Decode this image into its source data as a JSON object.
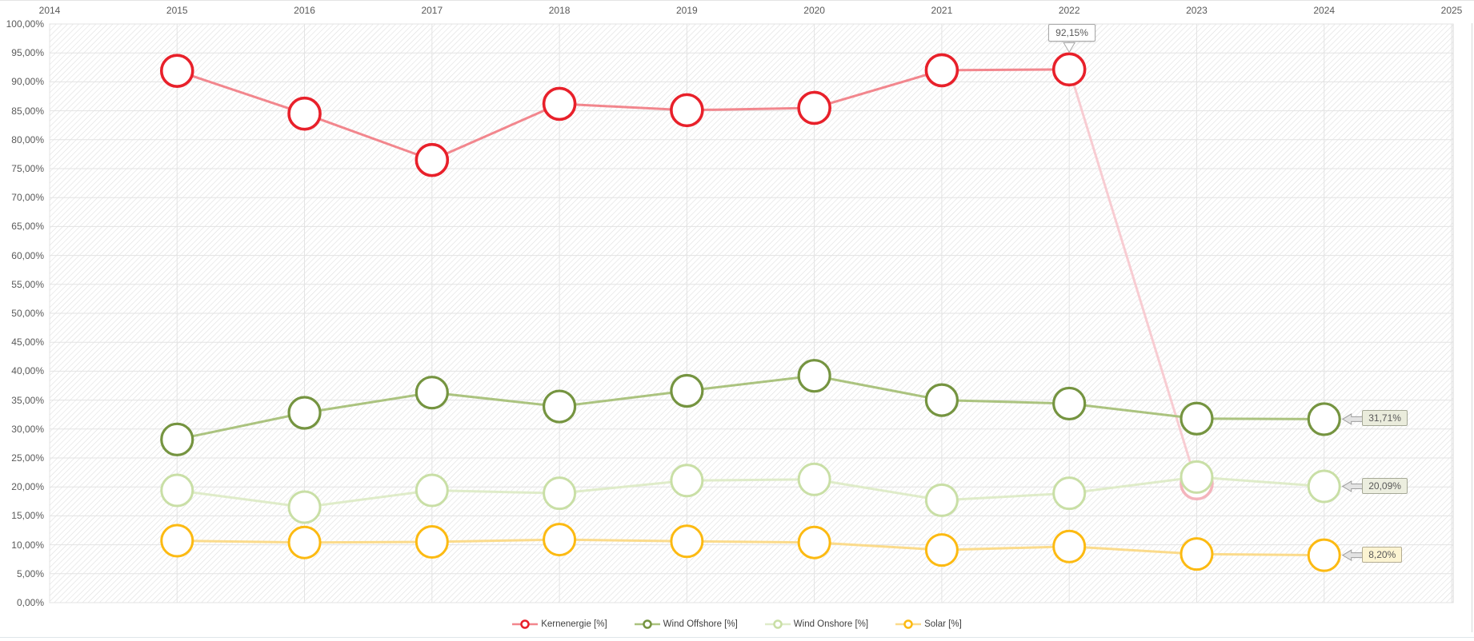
{
  "x_axis": {
    "labels": [
      "2014",
      "2015",
      "2016",
      "2017",
      "2018",
      "2019",
      "2020",
      "2021",
      "2022",
      "2023",
      "2024",
      "2025"
    ]
  },
  "y_axis": {
    "labels": [
      "100,00%",
      "95,00%",
      "90,00%",
      "85,00%",
      "80,00%",
      "75,00%",
      "70,00%",
      "65,00%",
      "60,00%",
      "55,00%",
      "50,00%",
      "45,00%",
      "40,00%",
      "35,00%",
      "30,00%",
      "25,00%",
      "20,00%",
      "15,00%",
      "10,00%",
      "5,00%",
      "0,00%"
    ]
  },
  "tooltip": {
    "text": "92,15%",
    "year": 2022,
    "value": 92.15
  },
  "annotations": [
    {
      "series": "Wind Offshore [%]",
      "text": "31,71%",
      "year": 2024,
      "value": 31.71,
      "bg": "#eaecdc",
      "border": "#a5a896"
    },
    {
      "series": "Wind Onshore [%]",
      "text": "20,09%",
      "year": 2024,
      "value": 20.09,
      "bg": "#eceedf",
      "border": "#a5a896"
    },
    {
      "series": "Solar [%]",
      "text": "8,20%",
      "year": 2024,
      "value": 8.2,
      "bg": "#fcf4d2",
      "border": "#b3ac92"
    }
  ],
  "legend": [
    {
      "label": "Kernenergie [%]",
      "color": "#e8202a",
      "line_color": "#f2868d"
    },
    {
      "label": "Wind Offshore [%]",
      "color": "#759440",
      "line_color": "#abc37f"
    },
    {
      "label": "Wind Onshore [%]",
      "color": "#c9dfa6",
      "line_color": "#dfecc9"
    },
    {
      "label": "Solar [%]",
      "color": "#fcba12",
      "line_color": "#fbdb8b"
    }
  ],
  "colors": {
    "grid": "#e3e3e3",
    "plot_border": "#d9d9d9",
    "hatch": "#dddddd",
    "axis_text": "#595959",
    "arrow_fill": "#e3e3e3",
    "arrow_stroke": "#9e9e9e",
    "faded_red_line": "#f8ccd2",
    "faded_red_marker": "#f4b4bc"
  },
  "chart_data": {
    "type": "line",
    "title": "",
    "xlabel": "",
    "ylabel": "",
    "x": [
      2015,
      2016,
      2017,
      2018,
      2019,
      2020,
      2021,
      2022,
      2023,
      2024
    ],
    "xlim": [
      2014,
      2025
    ],
    "ylim": [
      0,
      100
    ],
    "y_tick_step": 5,
    "grid": true,
    "legend_position": "bottom",
    "x_axis_position": "top",
    "background_pattern": "diagonal-hatch",
    "series": [
      {
        "name": "Kernenergie [%]",
        "color": "#e8202a",
        "line_color": "#f2868d",
        "marker_stroke_width": 3.6,
        "values": [
          91.9,
          84.5,
          76.5,
          86.2,
          85.1,
          85.5,
          92.0,
          92.15,
          20.6,
          null
        ],
        "fade_from_index": 7,
        "note": "segment 2022->2023 and 2023 marker drawn faded; 2023 marker mostly hidden behind Wind Onshore marker"
      },
      {
        "name": "Wind Offshore [%]",
        "color": "#759440",
        "line_color": "#abc37f",
        "marker_stroke_width": 3.2,
        "values": [
          28.2,
          32.8,
          36.3,
          33.9,
          36.6,
          39.2,
          35.0,
          34.4,
          31.8,
          31.71
        ]
      },
      {
        "name": "Wind Onshore [%]",
        "color": "#c9dfa6",
        "line_color": "#dfecc9",
        "marker_stroke_width": 3.0,
        "values": [
          19.4,
          16.5,
          19.4,
          18.9,
          21.1,
          21.3,
          17.7,
          18.9,
          21.7,
          20.09
        ]
      },
      {
        "name": "Solar [%]",
        "color": "#fcba12",
        "line_color": "#fbdb8b",
        "marker_stroke_width": 3.0,
        "values": [
          10.7,
          10.4,
          10.5,
          10.9,
          10.6,
          10.4,
          9.1,
          9.7,
          8.4,
          8.2
        ]
      }
    ]
  }
}
